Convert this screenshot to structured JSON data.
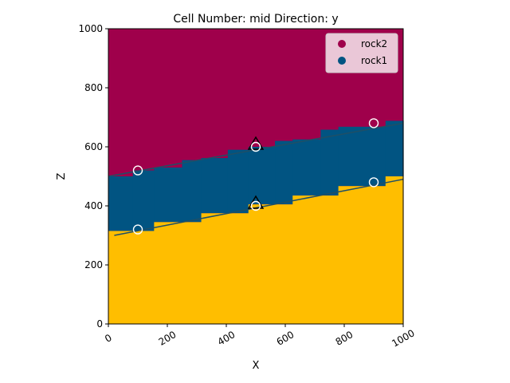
{
  "chart_data": {
    "type": "heatmap",
    "title": "Cell Number: mid Direction: y",
    "xlabel": "X",
    "ylabel": "Z",
    "xlim": [
      0,
      1000
    ],
    "ylim": [
      0,
      1000
    ],
    "xticks": [
      "0",
      "200",
      "400",
      "600",
      "800",
      "1000"
    ],
    "yticks": [
      "0",
      "200",
      "400",
      "600",
      "800",
      "1000"
    ],
    "grid": false,
    "legend_position": "top-right",
    "legend": [
      {
        "label": "rock2",
        "color": "#9f004b"
      },
      {
        "label": "rock1",
        "color": "#015482"
      }
    ],
    "colors": {
      "rock2": "#9f004b",
      "rock1": "#015482",
      "basement": "#ffbe00"
    },
    "columns": [
      {
        "x0": 0,
        "x1": 83,
        "top": 500,
        "bottom": 315
      },
      {
        "x0": 83,
        "x1": 155,
        "top": 520,
        "bottom": 315
      },
      {
        "x0": 155,
        "x1": 250,
        "top": 530,
        "bottom": 345
      },
      {
        "x0": 250,
        "x1": 315,
        "top": 555,
        "bottom": 345
      },
      {
        "x0": 315,
        "x1": 405,
        "top": 562,
        "bottom": 375
      },
      {
        "x0": 405,
        "x1": 475,
        "top": 590,
        "bottom": 375
      },
      {
        "x0": 475,
        "x1": 565,
        "top": 600,
        "bottom": 405
      },
      {
        "x0": 565,
        "x1": 625,
        "top": 620,
        "bottom": 405
      },
      {
        "x0": 625,
        "x1": 720,
        "top": 625,
        "bottom": 435
      },
      {
        "x0": 720,
        "x1": 780,
        "top": 658,
        "bottom": 435
      },
      {
        "x0": 780,
        "x1": 940,
        "top": 668,
        "bottom": 467
      },
      {
        "x0": 940,
        "x1": 1000,
        "top": 688,
        "bottom": 500
      }
    ],
    "contact_lines": [
      {
        "name": "rock2-rock1",
        "x": [
          0,
          1000
        ],
        "y": [
          500,
          680
        ]
      },
      {
        "name": "rock1-basement",
        "x": [
          20,
          1000
        ],
        "y": [
          300,
          490
        ]
      }
    ],
    "surface_points": [
      {
        "x": 100,
        "y": 520
      },
      {
        "x": 100,
        "y": 320
      },
      {
        "x": 500,
        "y": 600
      },
      {
        "x": 500,
        "y": 400
      },
      {
        "x": 900,
        "y": 680
      },
      {
        "x": 900,
        "y": 480
      }
    ],
    "orientations": [
      {
        "x": 500,
        "y": 600
      },
      {
        "x": 500,
        "y": 400
      }
    ]
  }
}
